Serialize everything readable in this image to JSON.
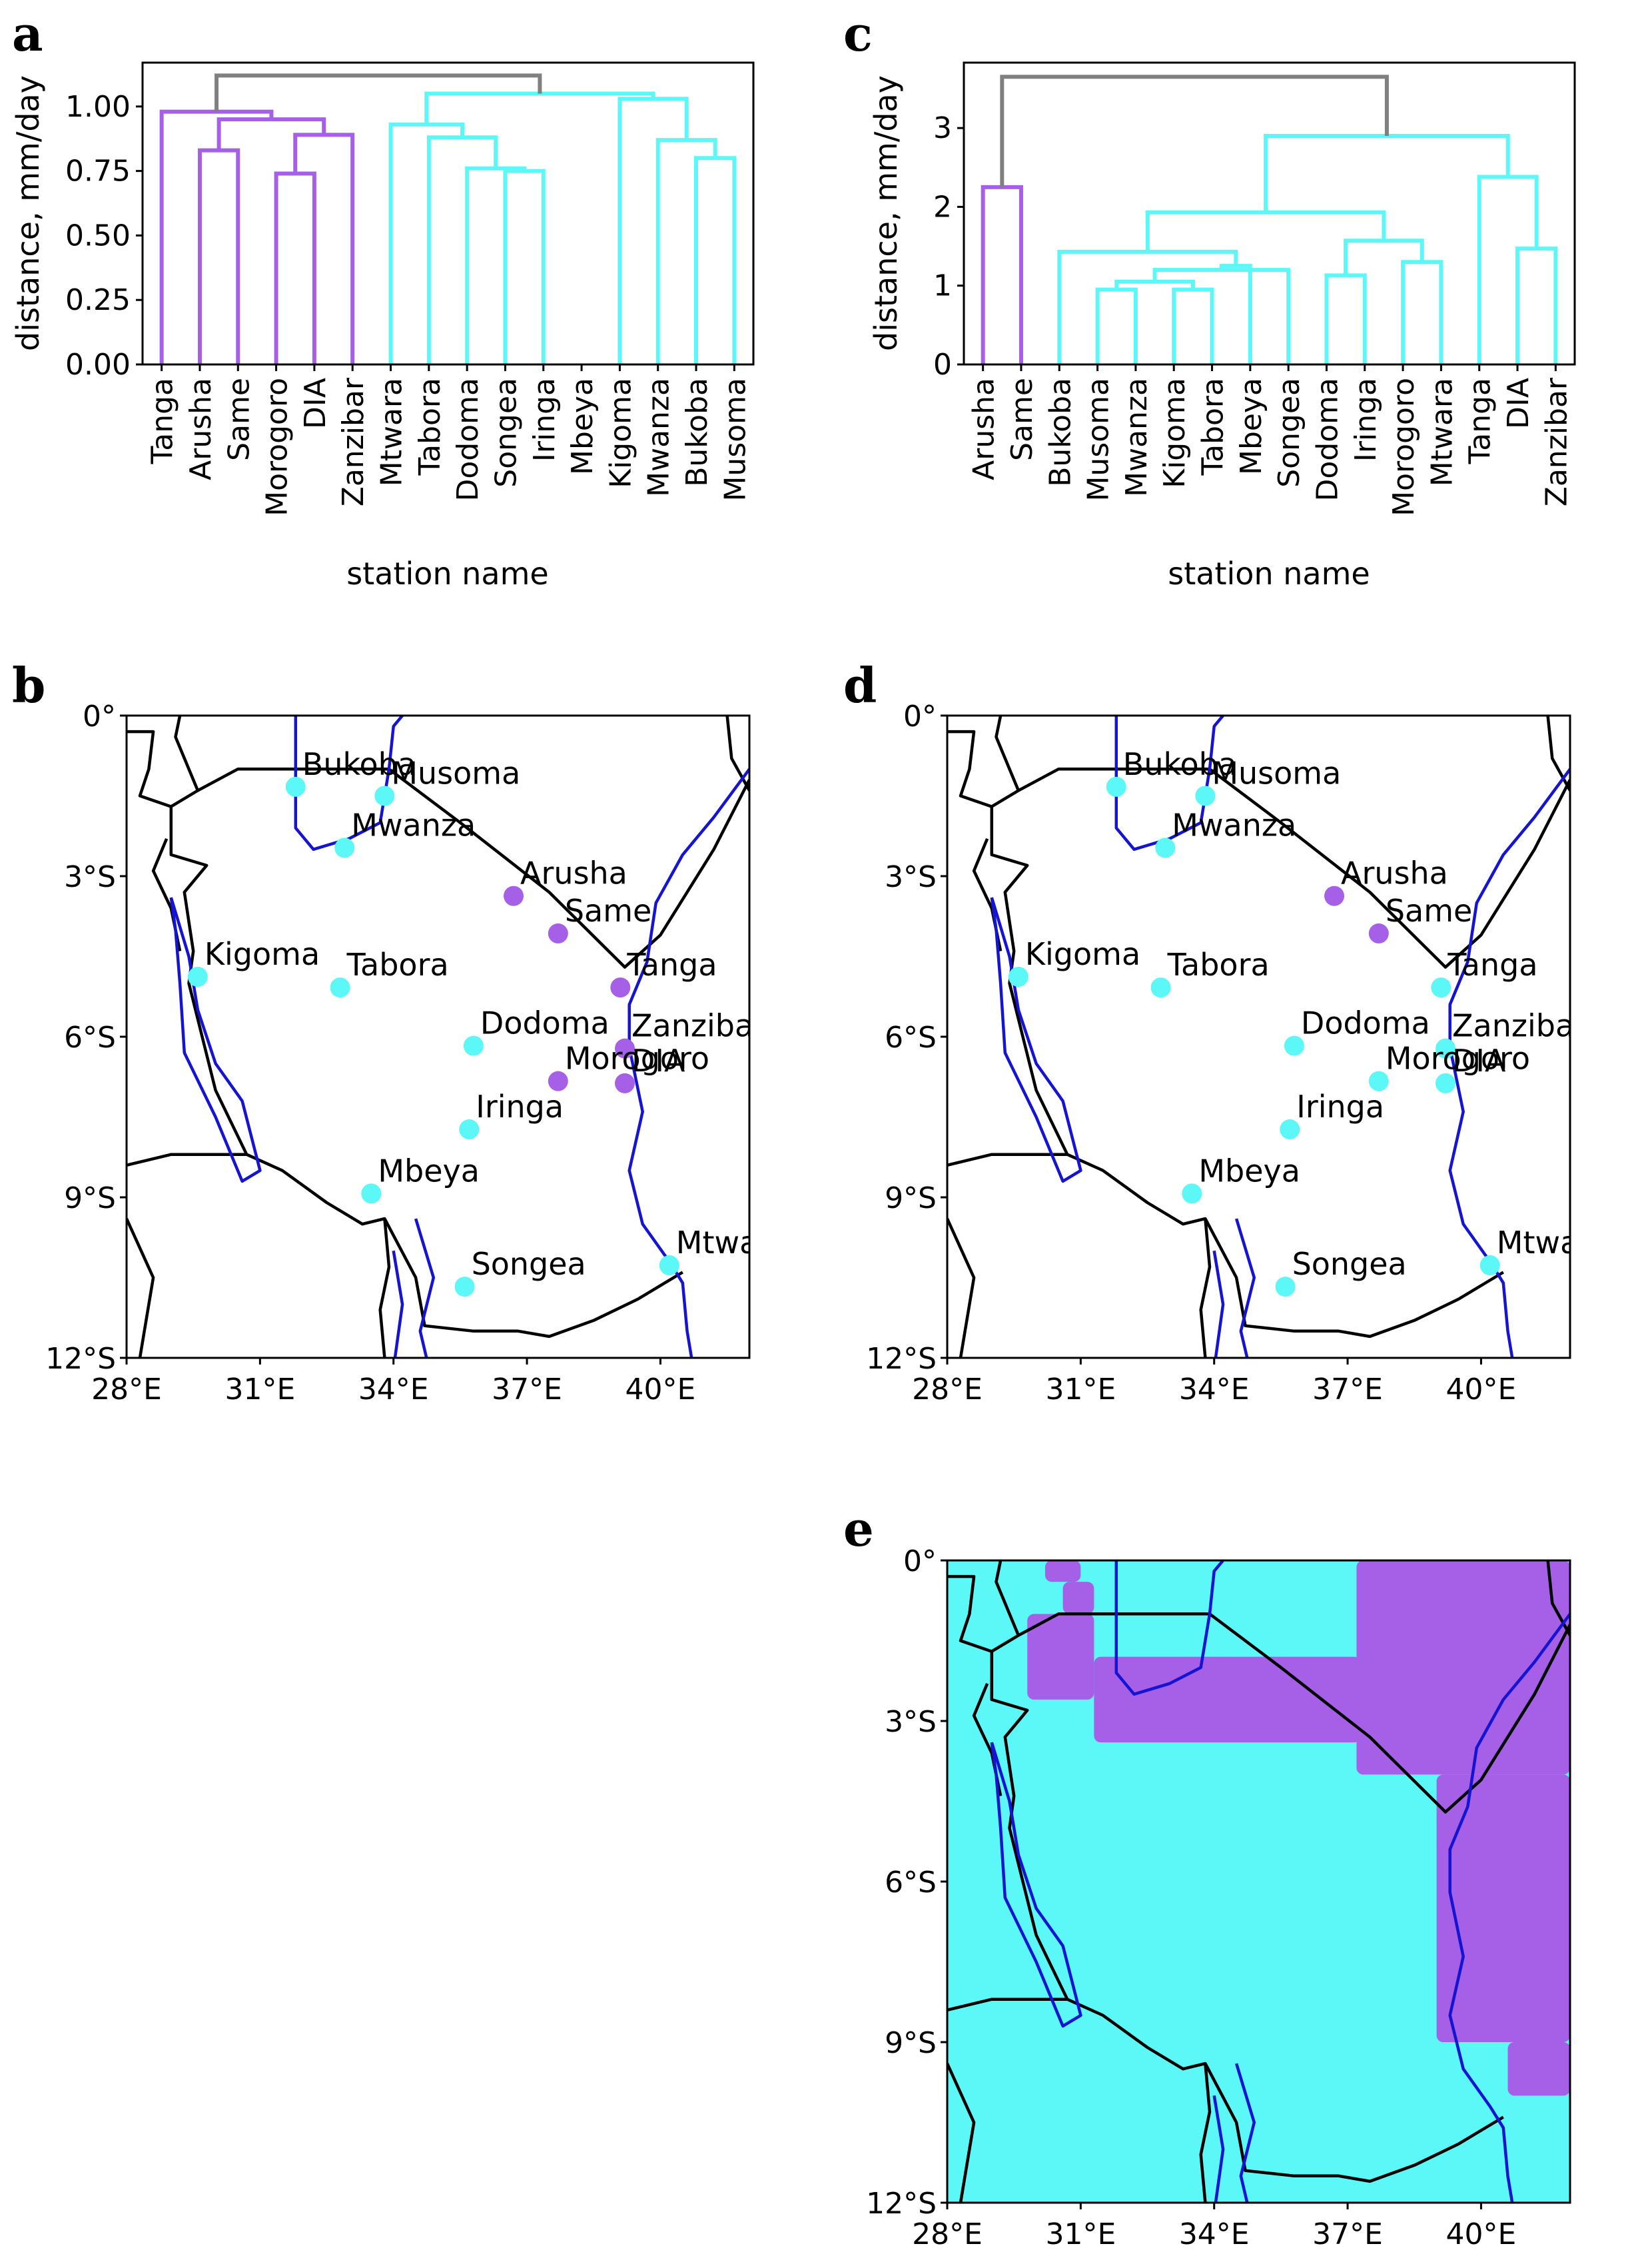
{
  "colors": {
    "cluster_purple": "#a660e8",
    "cluster_cyan": "#5cf7f7",
    "link_gray": "#808080",
    "lake_blue": "#1414d2",
    "border_black": "#000000"
  },
  "axis_labels": {
    "ylabel": "distance, mm/day",
    "xlabel": "station name"
  },
  "map_ticks": {
    "lat": [
      "0°",
      "3°S",
      "6°S",
      "9°S",
      "12°S"
    ],
    "lon": [
      "28°E",
      "31°E",
      "34°E",
      "37°E",
      "40°E"
    ]
  },
  "stations": [
    {
      "name": "Bukoba",
      "lon": 31.8,
      "lat": -1.33
    },
    {
      "name": "Musoma",
      "lon": 33.8,
      "lat": -1.5
    },
    {
      "name": "Mwanza",
      "lon": 32.9,
      "lat": -2.47
    },
    {
      "name": "Arusha",
      "lon": 36.7,
      "lat": -3.37
    },
    {
      "name": "Same",
      "lon": 37.7,
      "lat": -4.07
    },
    {
      "name": "Tanga",
      "lon": 39.1,
      "lat": -5.08
    },
    {
      "name": "Kigoma",
      "lon": 29.6,
      "lat": -4.88
    },
    {
      "name": "Tabora",
      "lon": 32.8,
      "lat": -5.08
    },
    {
      "name": "Dodoma",
      "lon": 35.8,
      "lat": -6.17
    },
    {
      "name": "Zanzibar",
      "lon": 39.2,
      "lat": -6.22
    },
    {
      "name": "Morogoro",
      "lon": 37.7,
      "lat": -6.83
    },
    {
      "name": "DIA",
      "lon": 39.2,
      "lat": -6.87
    },
    {
      "name": "Iringa",
      "lon": 35.7,
      "lat": -7.73
    },
    {
      "name": "Mbeya",
      "lon": 33.5,
      "lat": -8.93
    },
    {
      "name": "Songea",
      "lon": 35.6,
      "lat": -10.67
    },
    {
      "name": "Mtwara",
      "lon": 40.2,
      "lat": -10.27
    }
  ],
  "chart_data": [
    {
      "panel": "a",
      "type": "dendrogram",
      "ylabel": "distance, mm/day",
      "xlabel": "station name",
      "ylim": [
        0,
        1.17
      ],
      "yticks": [
        "0.00",
        "0.25",
        "0.50",
        "0.75",
        "1.00"
      ],
      "leaves": [
        "Tanga",
        "Arusha",
        "Same",
        "Morogoro",
        "DIA",
        "Zanzibar",
        "Mtwara",
        "Tabora",
        "Dodoma",
        "Songea",
        "Iringa",
        "Mbeya",
        "Kigoma",
        "Mwanza",
        "Bukoba",
        "Musoma"
      ],
      "merges": [
        {
          "a": 3,
          "b": 4,
          "h": 0.74,
          "c": "purple"
        },
        {
          "a": 1,
          "b": 2,
          "h": 0.83,
          "c": "purple"
        },
        {
          "a": 9,
          "b": 10,
          "h": 0.75,
          "c": "cyan"
        },
        {
          "a": 8,
          "b": 18,
          "h": 0.76,
          "c": "cyan"
        },
        {
          "a": 14,
          "b": 15,
          "h": 0.8,
          "c": "cyan"
        },
        {
          "a": 13,
          "b": 20,
          "h": 0.87,
          "c": "cyan"
        },
        {
          "a": 7,
          "b": 19,
          "h": 0.88,
          "c": "cyan"
        },
        {
          "a": 5,
          "b": 16,
          "h": 0.89,
          "c": "purple"
        },
        {
          "a": 6,
          "b": 22,
          "h": 0.93,
          "c": "cyan"
        },
        {
          "a": 17,
          "b": 23,
          "h": 0.95,
          "c": "purple"
        },
        {
          "a": 0,
          "b": 25,
          "h": 0.98,
          "c": "purple"
        },
        {
          "a": 12,
          "b": 21,
          "h": 1.03,
          "c": "cyan"
        },
        {
          "a": 24,
          "b": 27,
          "h": 1.05,
          "c": "cyan"
        },
        {
          "a": 26,
          "b": 28,
          "h": 1.12,
          "c": "gray"
        }
      ]
    },
    {
      "panel": "c",
      "type": "dendrogram",
      "ylabel": "distance, mm/day",
      "xlabel": "station name",
      "ylim": [
        0,
        3.83
      ],
      "yticks": [
        "0",
        "1",
        "2",
        "3"
      ],
      "leaves": [
        "Arusha",
        "Same",
        "Bukoba",
        "Musoma",
        "Mwanza",
        "Kigoma",
        "Tabora",
        "Mbeya",
        "Songea",
        "Dodoma",
        "Iringa",
        "Morogoro",
        "Mtwara",
        "Tanga",
        "DIA",
        "Zanzibar"
      ],
      "merges": [
        {
          "a": 3,
          "b": 4,
          "h": 0.95,
          "c": "cyan"
        },
        {
          "a": 5,
          "b": 6,
          "h": 0.95,
          "c": "cyan"
        },
        {
          "a": 16,
          "b": 17,
          "h": 1.05,
          "c": "cyan"
        },
        {
          "a": 9,
          "b": 10,
          "h": 1.13,
          "c": "cyan"
        },
        {
          "a": 8,
          "b": 18,
          "h": 1.2,
          "c": "cyan"
        },
        {
          "a": 7,
          "b": 20,
          "h": 1.25,
          "c": "cyan"
        },
        {
          "a": 11,
          "b": 12,
          "h": 1.3,
          "c": "cyan"
        },
        {
          "a": 2,
          "b": 21,
          "h": 1.43,
          "c": "cyan"
        },
        {
          "a": 14,
          "b": 15,
          "h": 1.47,
          "c": "cyan"
        },
        {
          "a": 19,
          "b": 22,
          "h": 1.57,
          "c": "cyan"
        },
        {
          "a": 23,
          "b": 25,
          "h": 1.93,
          "c": "cyan"
        },
        {
          "a": 0,
          "b": 1,
          "h": 2.25,
          "c": "purple"
        },
        {
          "a": 13,
          "b": 24,
          "h": 2.38,
          "c": "cyan"
        },
        {
          "a": 26,
          "b": 28,
          "h": 2.9,
          "c": "cyan"
        },
        {
          "a": 27,
          "b": 29,
          "h": 3.65,
          "c": "gray"
        }
      ]
    },
    {
      "panel": "b",
      "type": "scatter-map",
      "xlim": [
        28,
        42
      ],
      "ylim": [
        -12,
        0
      ],
      "clusters": {
        "Bukoba": "cyan",
        "Musoma": "cyan",
        "Mwanza": "cyan",
        "Arusha": "purple",
        "Same": "purple",
        "Tanga": "purple",
        "Kigoma": "cyan",
        "Tabora": "cyan",
        "Dodoma": "cyan",
        "Zanzibar": "purple",
        "Morogoro": "purple",
        "DIA": "purple",
        "Iringa": "cyan",
        "Mbeya": "cyan",
        "Songea": "cyan",
        "Mtwara": "cyan"
      }
    },
    {
      "panel": "d",
      "type": "scatter-map",
      "xlim": [
        28,
        42
      ],
      "ylim": [
        -12,
        0
      ],
      "clusters": {
        "Bukoba": "cyan",
        "Musoma": "cyan",
        "Mwanza": "cyan",
        "Arusha": "purple",
        "Same": "purple",
        "Tanga": "cyan",
        "Kigoma": "cyan",
        "Tabora": "cyan",
        "Dodoma": "cyan",
        "Zanzibar": "cyan",
        "Morogoro": "cyan",
        "DIA": "cyan",
        "Iringa": "cyan",
        "Mbeya": "cyan",
        "Songea": "cyan",
        "Mtwara": "cyan"
      }
    },
    {
      "panel": "e",
      "type": "heatmap",
      "xlim": [
        28,
        42
      ],
      "ylim": [
        -12,
        0
      ],
      "background": "cyan",
      "purple_regions": [
        {
          "lon": [
            37.2,
            42
          ],
          "lat": [
            -4.0,
            0
          ]
        },
        {
          "lon": [
            39.0,
            42
          ],
          "lat": [
            -9.0,
            -4.0
          ]
        },
        {
          "lon": [
            40.6,
            42
          ],
          "lat": [
            -10.0,
            -9.0
          ]
        },
        {
          "lon": [
            31.3,
            37.3
          ],
          "lat": [
            -3.4,
            -1.8
          ]
        },
        {
          "lon": [
            29.8,
            31.3
          ],
          "lat": [
            -2.6,
            -1.0
          ]
        },
        {
          "lon": [
            30.2,
            31.0
          ],
          "lat": [
            -0.4,
            0
          ]
        },
        {
          "lon": [
            30.6,
            31.3
          ],
          "lat": [
            -1.0,
            -0.4
          ]
        }
      ]
    }
  ],
  "panel_letters": {
    "a": "a",
    "b": "b",
    "c": "c",
    "d": "d",
    "e": "e"
  }
}
